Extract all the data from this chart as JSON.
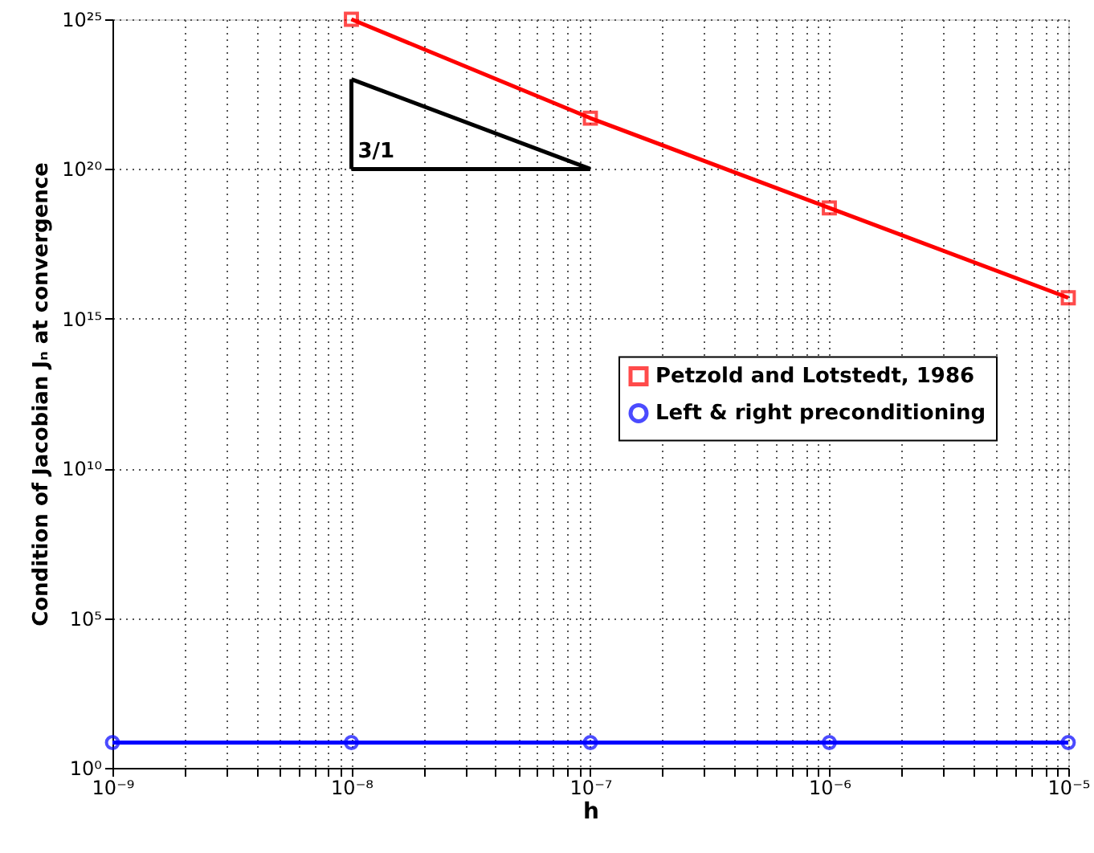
{
  "chart_data": {
    "type": "line",
    "xlabel": "h",
    "ylabel": "Condition of Jacobian Jₙ at convergence",
    "x": [
      1e-09,
      1e-08,
      1e-07,
      1e-06,
      1e-05
    ],
    "series": [
      {
        "name": "Petzold and Lotstedt, 1986",
        "color": "#ff0000",
        "marker": "square",
        "x": [
          1e-08,
          1e-07,
          1e-06,
          1e-05
        ],
        "values": [
          1e+25,
          5e+21,
          5e+18,
          5000000000000000.0
        ]
      },
      {
        "name": "Left & right preconditioning",
        "color": "#0000ff",
        "marker": "circle",
        "values": [
          7,
          7,
          7,
          7,
          7
        ]
      },
      {
        "color": "#000000",
        "marker": "none",
        "x": [
          1e-08,
          1e-07
        ],
        "values": [
          1e+23,
          1e+20
        ]
      },
      {
        "color": "#000000",
        "marker": "none",
        "x": [
          1e-08,
          1e-07
        ],
        "values": [
          1e+20,
          1e+20
        ],
        "errors": [
          [
            1e+20,
            1e+23
          ],
          null
        ]
      }
    ],
    "annotations": [
      "3/1"
    ],
    "log": "xy",
    "xlim": [
      1e-09,
      1e-05
    ],
    "ylim": [
      1,
      1e+25
    ],
    "xticks": [
      {
        "value": 1e-09,
        "label": "10⁻⁹"
      },
      {
        "value": 2e-09,
        "label": null
      },
      {
        "value": 3e-09,
        "label": null
      },
      {
        "value": 4e-09,
        "label": null
      },
      {
        "value": 5e-09,
        "label": null
      },
      {
        "value": 6e-09,
        "label": null
      },
      {
        "value": 7e-09,
        "label": null
      },
      {
        "value": 8e-09,
        "label": null
      },
      {
        "value": 9e-09,
        "label": null
      },
      {
        "value": 1e-08,
        "label": "10⁻⁸"
      },
      {
        "value": 2e-08,
        "label": null
      },
      {
        "value": 3e-08,
        "label": null
      },
      {
        "value": 4e-08,
        "label": null
      },
      {
        "value": 5e-08,
        "label": null
      },
      {
        "value": 6e-08,
        "label": null
      },
      {
        "value": 7e-08,
        "label": null
      },
      {
        "value": 8e-08,
        "label": null
      },
      {
        "value": 9e-08,
        "label": null
      },
      {
        "value": 1e-07,
        "label": "10⁻⁷"
      },
      {
        "value": 2e-07,
        "label": null
      },
      {
        "value": 3e-07,
        "label": null
      },
      {
        "value": 4e-07,
        "label": null
      },
      {
        "value": 5e-07,
        "label": null
      },
      {
        "value": 6e-07,
        "label": null
      },
      {
        "value": 7e-07,
        "label": null
      },
      {
        "value": 8e-07,
        "label": null
      },
      {
        "value": 9e-07,
        "label": null
      },
      {
        "value": 1e-06,
        "label": "10⁻⁶"
      },
      {
        "value": 2e-06,
        "label": null
      },
      {
        "value": 3e-06,
        "label": null
      },
      {
        "value": 4e-06,
        "label": null
      },
      {
        "value": 5e-06,
        "label": null
      },
      {
        "value": 6e-06,
        "label": null
      },
      {
        "value": 7e-06,
        "label": null
      },
      {
        "value": 8e-06,
        "label": null
      },
      {
        "value": 9e-06,
        "label": null
      },
      {
        "value": 1e-05,
        "label": "10⁻⁵"
      }
    ],
    "yticks": [
      {
        "value": 1,
        "label": "10⁰"
      },
      {
        "value": 100000.0,
        "label": "10⁵"
      },
      {
        "value": 10000000000.0,
        "label": "10¹⁰"
      },
      {
        "value": 1000000000000000.0,
        "label": "10¹⁵"
      },
      {
        "value": 1e+20,
        "label": "10²⁰"
      },
      {
        "value": 1e+25,
        "label": "10²⁵"
      }
    ],
    "grid": true,
    "legend": "right",
    "line_style": "solid"
  }
}
